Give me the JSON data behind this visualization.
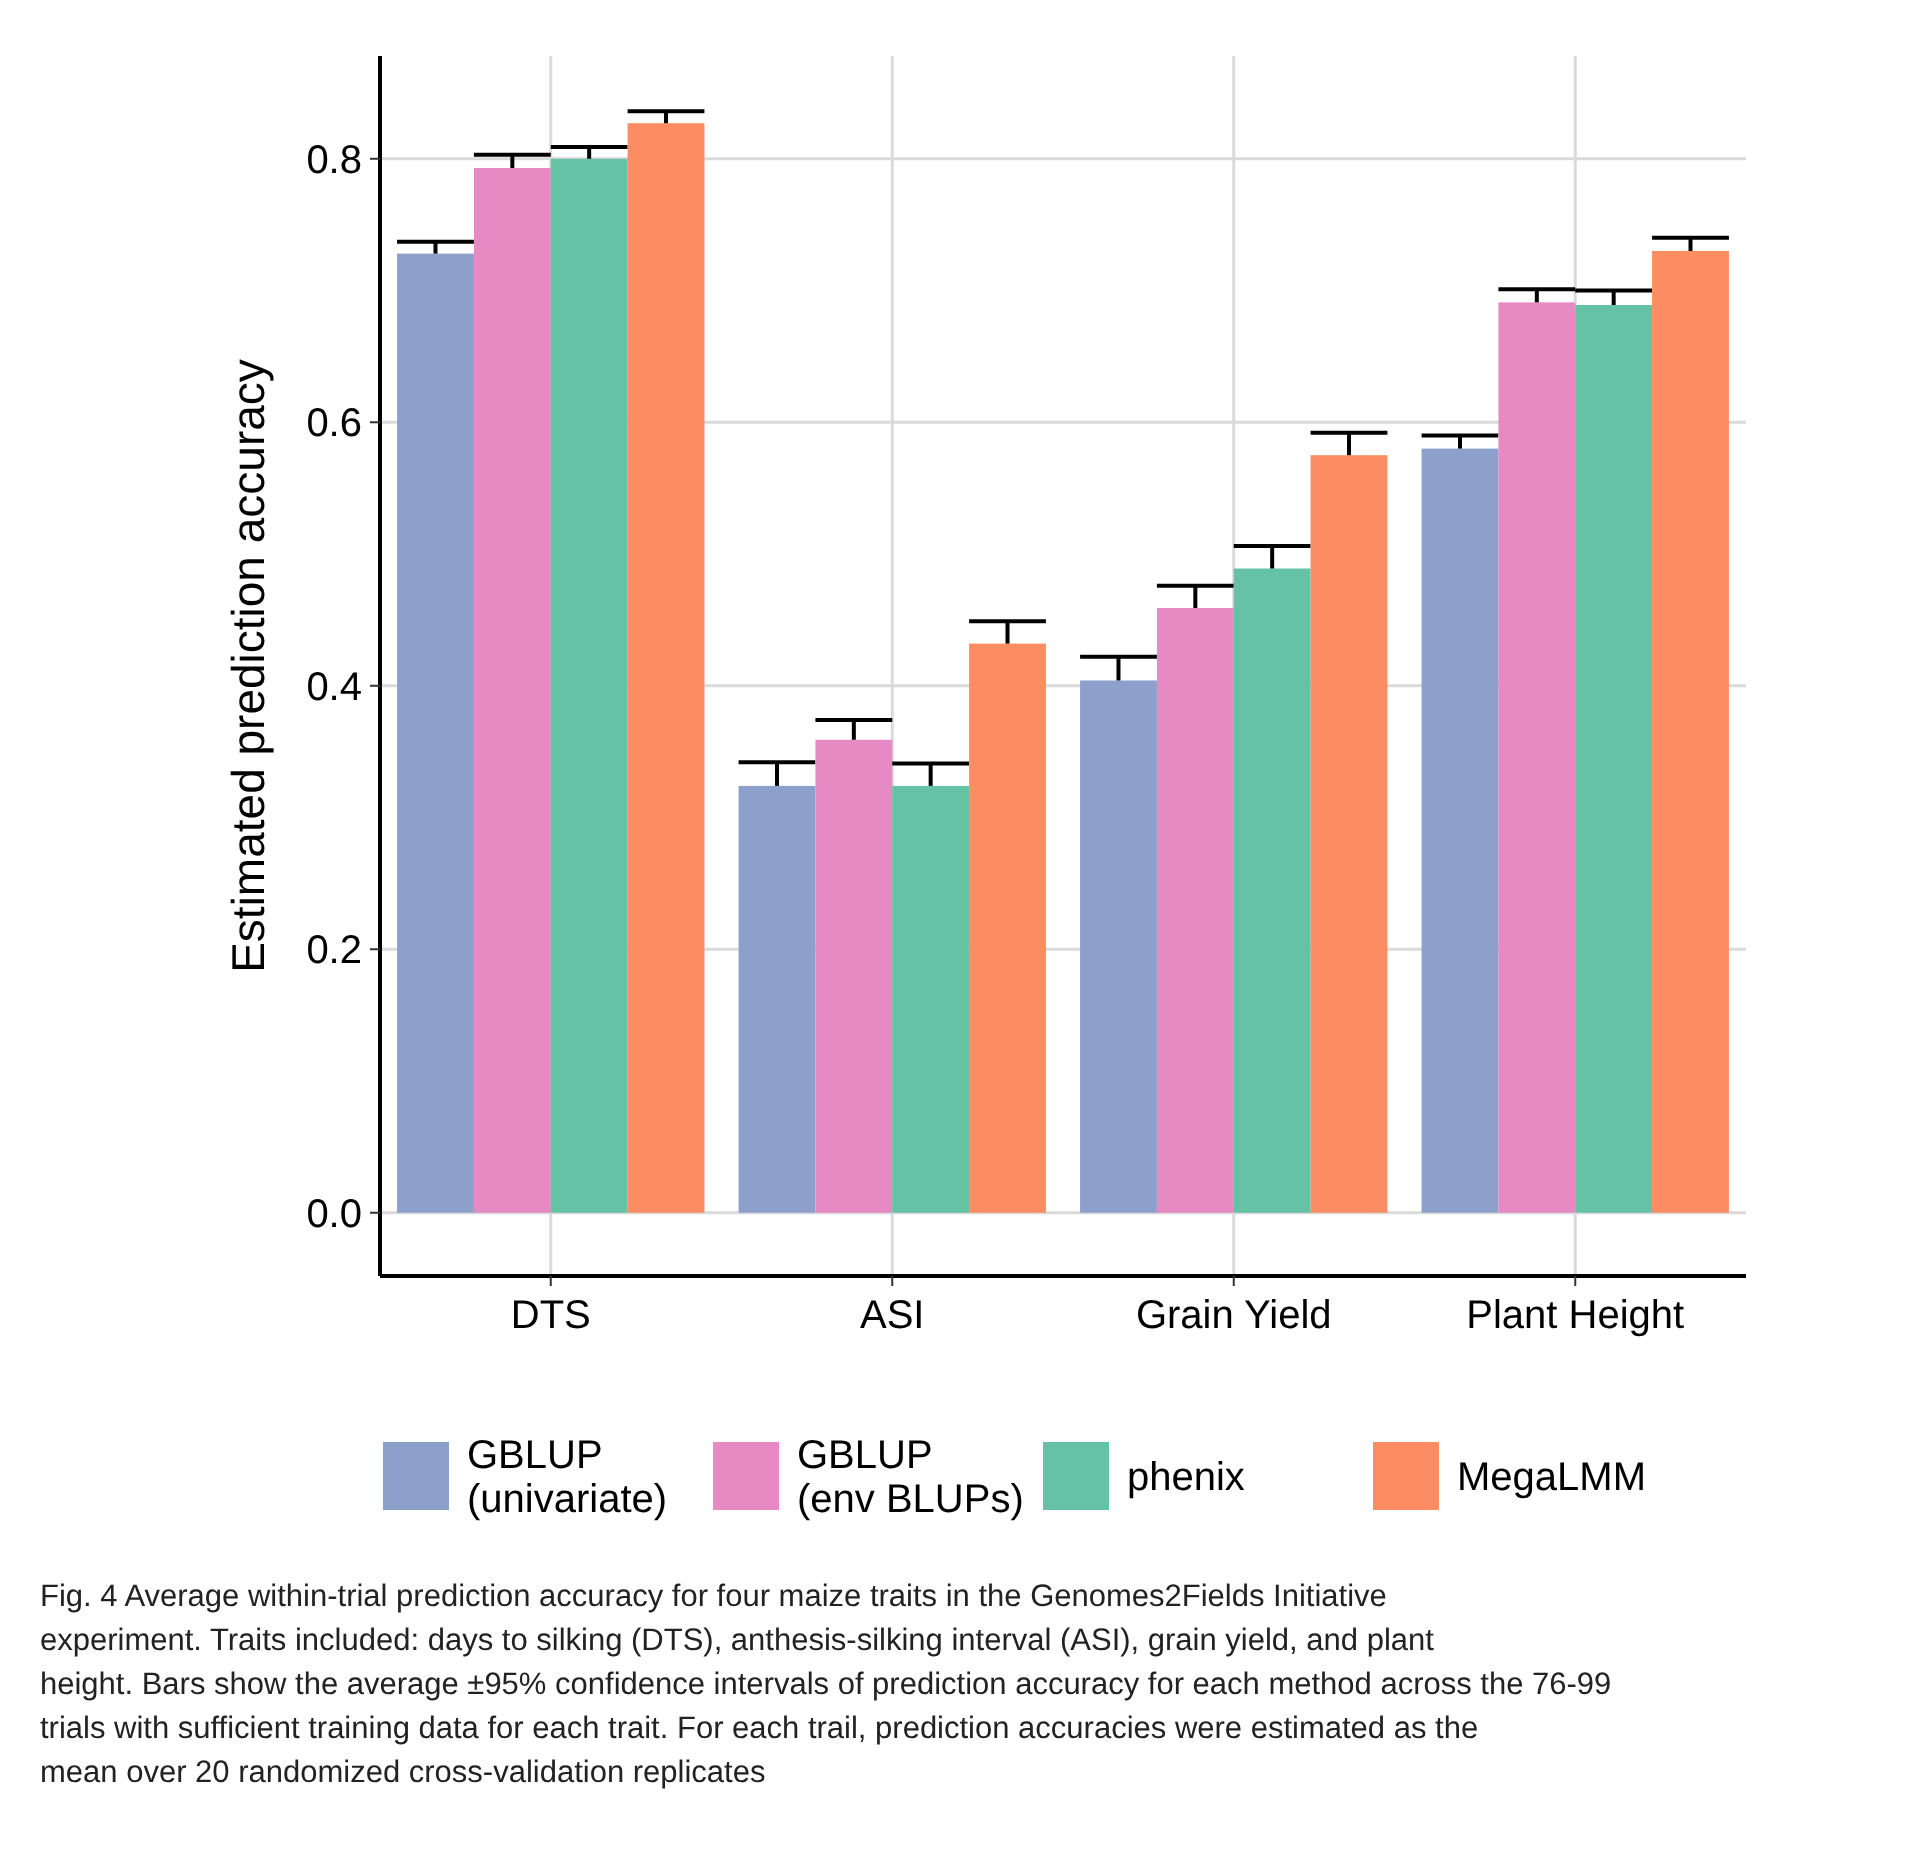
{
  "chart_data": {
    "type": "bar",
    "ylabel": "Estimated prediction accuracy",
    "categories": [
      "DTS",
      "ASI",
      "Grain Yield",
      "Plant Height"
    ],
    "series": [
      {
        "name": "GBLUP (univariate)",
        "color": "#8da0cb",
        "values": [
          0.728,
          0.324,
          0.404,
          0.58
        ],
        "errors": [
          0.009,
          0.018,
          0.018,
          0.01
        ]
      },
      {
        "name": "GBLUP (env BLUPs)",
        "color": "#e78ac3",
        "values": [
          0.793,
          0.359,
          0.459,
          0.691
        ],
        "errors": [
          0.01,
          0.015,
          0.017,
          0.01
        ]
      },
      {
        "name": "phenix",
        "color": "#66c2a5",
        "values": [
          0.8,
          0.324,
          0.489,
          0.689
        ],
        "errors": [
          0.009,
          0.017,
          0.017,
          0.011
        ]
      },
      {
        "name": "MegaLMM",
        "color": "#fc8d62",
        "values": [
          0.827,
          0.432,
          0.575,
          0.73
        ],
        "errors": [
          0.009,
          0.017,
          0.017,
          0.01
        ]
      }
    ],
    "ylim": [
      -0.048,
      0.878
    ],
    "yticks": [
      {
        "value": 0,
        "label": "0.0"
      },
      {
        "value": 0.2,
        "label": "0.2"
      },
      {
        "value": 0.4,
        "label": "0.4"
      },
      {
        "value": 0.6,
        "label": "0.6"
      },
      {
        "value": 0.8,
        "label": "0.8"
      }
    ],
    "grid": true,
    "legend": "bottom",
    "annotations": [
      "Fig. 4 Average within-trial prediction accuracy for four maize traits in the Genomes2Fields Initiative experiment. Traits included: days to silking (DTS), anthesis-silking interval (ASI), grain yield, and plant height. Bars show the average ±95% confidence intervals of prediction accuracy for each method across the 76-99 trials with sufficient training data for each trait. For each trail, prediction accuracies were estimated as the mean over 20 randomized cross-validation replicates"
    ]
  }
}
